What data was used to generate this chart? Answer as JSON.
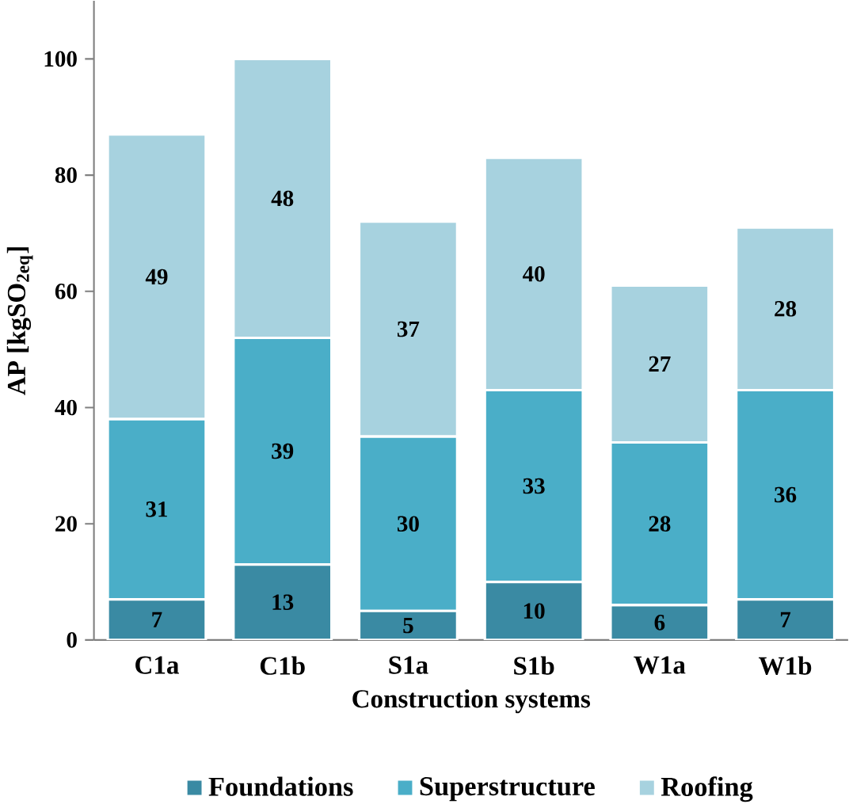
{
  "chart_data": {
    "type": "bar",
    "stacked": true,
    "xlabel": "Construction systems",
    "ylabel": "AP [kgSO$_{2eq}$]",
    "categories": [
      "C1a",
      "C1b",
      "S1a",
      "S1b",
      "W1a",
      "W1b"
    ],
    "series": [
      {
        "name": "Foundations",
        "color": "#3a8aa3",
        "values": [
          7,
          13,
          5,
          10,
          6,
          7
        ]
      },
      {
        "name": "Superstructure",
        "color": "#4aaec8",
        "values": [
          31,
          39,
          30,
          33,
          28,
          36
        ]
      },
      {
        "name": "Roofing",
        "color": "#a7d2df",
        "values": [
          49,
          48,
          37,
          40,
          27,
          28
        ]
      }
    ],
    "ylim": [
      0,
      110
    ],
    "yticks": [
      0,
      20,
      40,
      60,
      80,
      100
    ],
    "data_labels": true,
    "legend": "bottom",
    "grid": false
  }
}
